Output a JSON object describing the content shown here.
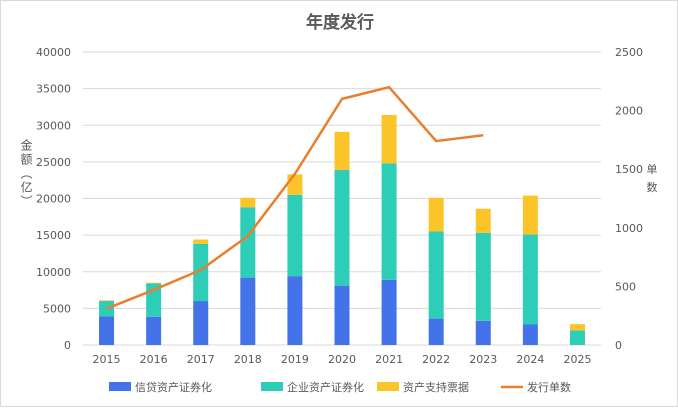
{
  "chart_data": {
    "type": "bar",
    "stacked": true,
    "title": "年度发行",
    "ylabel": "金额（亿）",
    "y2label": "单数",
    "categories": [
      "2015",
      "2016",
      "2017",
      "2018",
      "2019",
      "2020",
      "2021",
      "2022",
      "2023",
      "2024",
      "2025"
    ],
    "ylim": [
      0,
      40000
    ],
    "yticks": [
      0,
      5000,
      10000,
      15000,
      20000,
      25000,
      30000,
      35000,
      40000
    ],
    "y2lim": [
      0,
      2500
    ],
    "y2ticks": [
      0,
      500,
      1000,
      1500,
      2000,
      2500
    ],
    "grid": true,
    "legend": "bottom",
    "series": [
      {
        "name": "信贷资产证券化",
        "type": "bar",
        "color": "#4472e8",
        "values": [
          3900,
          3850,
          6000,
          9200,
          9400,
          8100,
          8900,
          3600,
          3300,
          2800,
          0
        ]
      },
      {
        "name": "企业资产证券化",
        "type": "bar",
        "color": "#2ecdb8",
        "values": [
          2100,
          4550,
          7800,
          9600,
          11100,
          15800,
          15900,
          11900,
          12000,
          12300,
          2000
        ]
      },
      {
        "name": "资产支持票据",
        "type": "bar",
        "color": "#fbc52a",
        "values": [
          100,
          100,
          600,
          1300,
          2800,
          5200,
          6600,
          4600,
          3300,
          5300,
          850
        ]
      },
      {
        "name": "发行单数",
        "type": "line",
        "axis": "right",
        "color": "#e97f2e",
        "values": [
          310,
          470,
          640,
          930,
          1460,
          2100,
          2200,
          1740,
          1790,
          null,
          null
        ]
      }
    ]
  }
}
